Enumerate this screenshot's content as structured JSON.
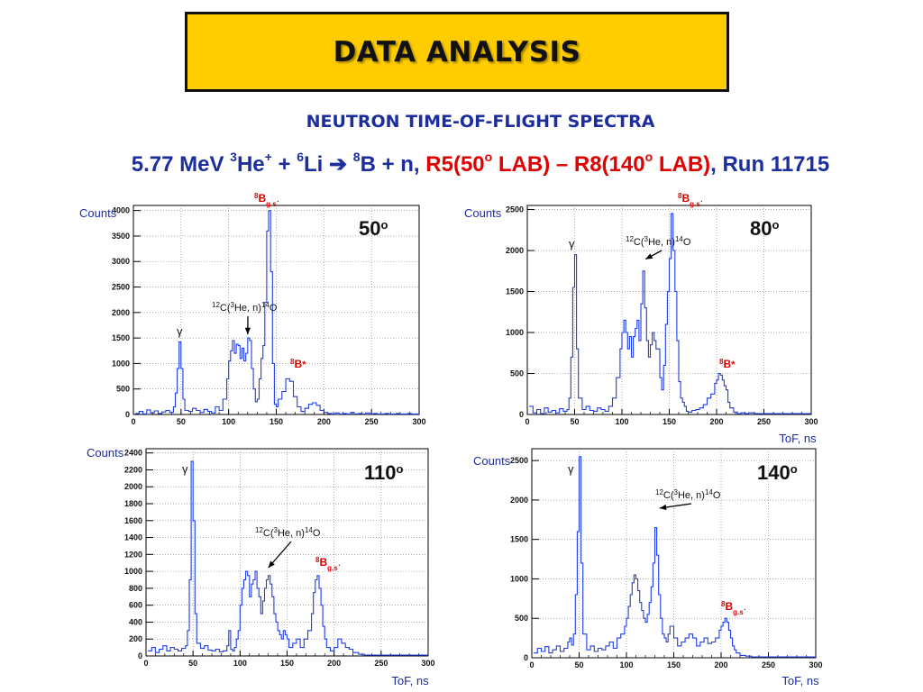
{
  "title": "DATA ANALYSIS",
  "subtitle": "NEUTRON TIME-OF-FLIGHT SPECTRA",
  "reaction": {
    "p1": "5.77 MeV ",
    "sup1": "3",
    "p2": "He",
    "sup2": "+",
    "p3": " + ",
    "sup3": "6",
    "p4": "Li ",
    "arrow": "➔",
    "p5": " ",
    "sup4": "8",
    "p6": "B + n, ",
    "red1": "R5(50",
    "sup5": "o",
    "red2": " LAB) – R8(140",
    "sup6": "o",
    "red3": " LAB)",
    "p7": ", Run 11715"
  },
  "colors": {
    "series": "#1f3de0",
    "label": "#1c2d9e",
    "red": "#e00000",
    "title_bg": "#ffcc00"
  },
  "chart_data": [
    {
      "type": "line",
      "angle_label": "50",
      "angle_unit": "o",
      "ylabel": "Counts",
      "xlabel": "",
      "xlim": [
        0,
        300
      ],
      "ylim": [
        0,
        4100
      ],
      "xticks": [
        0,
        50,
        100,
        150,
        200,
        250,
        300
      ],
      "yticks": [
        0,
        500,
        1000,
        1500,
        2000,
        2500,
        3000,
        3500,
        4000
      ],
      "annotations": [
        {
          "text": "γ",
          "x": 45,
          "y": 1700
        },
        {
          "text": "12C(3He, n)14O",
          "x": 120,
          "y": 1500,
          "arrow": true
        },
        {
          "text": "8Bg.s.",
          "x": 142,
          "y": 4200
        },
        {
          "text": "8B*",
          "x": 170,
          "y": 900
        }
      ],
      "x": [
        2,
        6,
        10,
        14,
        18,
        22,
        26,
        30,
        34,
        38,
        42,
        44,
        46,
        48,
        50,
        52,
        54,
        58,
        62,
        66,
        70,
        74,
        78,
        82,
        86,
        90,
        94,
        98,
        100,
        102,
        104,
        106,
        108,
        110,
        112,
        114,
        116,
        118,
        120,
        122,
        124,
        126,
        128,
        130,
        132,
        134,
        136,
        138,
        140,
        142,
        144,
        146,
        148,
        150,
        152,
        156,
        160,
        164,
        168,
        172,
        176,
        180,
        184,
        188,
        192,
        196,
        200,
        204,
        208,
        212,
        216,
        220,
        224,
        228,
        232,
        236,
        240,
        244,
        248,
        252,
        256,
        260,
        264,
        268,
        272,
        276,
        280,
        284,
        288,
        292,
        296,
        300
      ],
      "y": [
        20,
        60,
        10,
        90,
        30,
        70,
        20,
        50,
        80,
        40,
        150,
        420,
        900,
        1420,
        900,
        300,
        80,
        60,
        120,
        80,
        40,
        100,
        60,
        30,
        150,
        80,
        300,
        700,
        1050,
        1250,
        1450,
        1200,
        1380,
        1350,
        1100,
        1300,
        1050,
        1200,
        1500,
        1450,
        900,
        500,
        250,
        300,
        700,
        1100,
        1350,
        2200,
        3600,
        4000,
        2800,
        1000,
        200,
        150,
        300,
        450,
        700,
        650,
        350,
        150,
        60,
        120,
        200,
        230,
        180,
        80,
        40,
        20,
        10,
        30,
        10,
        20,
        10,
        40,
        10,
        20,
        10,
        30,
        10,
        20,
        10,
        10,
        20,
        10,
        10,
        20,
        10,
        10,
        20,
        10,
        10,
        10
      ]
    },
    {
      "type": "line",
      "angle_label": "80",
      "angle_unit": "o",
      "ylabel": "Counts",
      "xlabel": "ToF, ns",
      "xlim": [
        0,
        300
      ],
      "ylim": [
        0,
        2550
      ],
      "xticks": [
        0,
        50,
        100,
        150,
        200,
        250,
        300
      ],
      "yticks": [
        0,
        500,
        1000,
        1500,
        2000,
        2500
      ],
      "annotations": [
        {
          "text": "γ",
          "x": 45,
          "y": 2100
        },
        {
          "text": "12C(3He, n)14O",
          "x": 125,
          "y": 1850,
          "arrow": true
        },
        {
          "text": "8Bg.s.",
          "x": 163,
          "y": 2650
        },
        {
          "text": "8B*",
          "x": 205,
          "y": 580
        }
      ],
      "x": [
        2,
        6,
        10,
        14,
        18,
        22,
        26,
        30,
        34,
        38,
        42,
        44,
        46,
        48,
        50,
        52,
        54,
        58,
        62,
        66,
        70,
        74,
        78,
        82,
        86,
        90,
        94,
        98,
        100,
        102,
        104,
        106,
        108,
        110,
        112,
        114,
        116,
        118,
        120,
        122,
        124,
        126,
        128,
        130,
        132,
        134,
        136,
        140,
        142,
        144,
        146,
        148,
        150,
        152,
        154,
        156,
        158,
        160,
        162,
        164,
        166,
        168,
        170,
        174,
        178,
        182,
        186,
        190,
        194,
        198,
        200,
        202,
        204,
        206,
        208,
        210,
        212,
        214,
        218,
        222,
        226,
        230,
        234,
        240,
        250,
        260,
        270,
        280,
        290,
        300
      ],
      "y": [
        100,
        20,
        60,
        10,
        80,
        30,
        50,
        20,
        70,
        40,
        60,
        200,
        700,
        1550,
        1950,
        800,
        200,
        60,
        100,
        50,
        40,
        80,
        60,
        40,
        100,
        200,
        450,
        800,
        1000,
        1150,
        1000,
        800,
        950,
        700,
        950,
        1050,
        1150,
        900,
        1350,
        1750,
        1300,
        900,
        700,
        850,
        1000,
        900,
        800,
        450,
        300,
        600,
        1100,
        1500,
        1900,
        2450,
        2000,
        1500,
        900,
        400,
        200,
        150,
        100,
        40,
        30,
        50,
        60,
        80,
        120,
        200,
        250,
        380,
        420,
        500,
        480,
        420,
        350,
        300,
        150,
        80,
        30,
        10,
        20,
        10,
        20,
        10,
        10,
        10,
        10,
        10,
        10,
        10
      ]
    },
    {
      "type": "line",
      "angle_label": "110",
      "angle_unit": "o",
      "ylabel": "Counts",
      "xlabel": "ToF, ns",
      "xlim": [
        0,
        300
      ],
      "ylim": [
        0,
        2450
      ],
      "xticks": [
        0,
        50,
        100,
        150,
        200,
        250,
        300
      ],
      "yticks": [
        0,
        200,
        400,
        600,
        800,
        1000,
        1200,
        1400,
        1600,
        1800,
        2000,
        2200,
        2400
      ],
      "annotations": [
        {
          "text": "γ",
          "x": 40,
          "y": 2300
        },
        {
          "text": "12C(3He, n)14O",
          "x": 130,
          "y": 1000,
          "arrow": true
        },
        {
          "text": "8Bg.s.",
          "x": 185,
          "y": 1080
        }
      ],
      "x": [
        2,
        6,
        10,
        14,
        18,
        22,
        26,
        30,
        34,
        38,
        42,
        44,
        46,
        48,
        50,
        52,
        54,
        58,
        62,
        66,
        70,
        74,
        78,
        82,
        86,
        88,
        90,
        92,
        94,
        96,
        98,
        100,
        102,
        104,
        106,
        108,
        110,
        112,
        114,
        116,
        118,
        120,
        122,
        124,
        126,
        128,
        130,
        132,
        134,
        136,
        138,
        140,
        142,
        144,
        146,
        148,
        150,
        152,
        156,
        160,
        164,
        168,
        172,
        176,
        178,
        180,
        182,
        184,
        186,
        188,
        190,
        192,
        196,
        200,
        204,
        208,
        212,
        216,
        220,
        226,
        232,
        240,
        250,
        260,
        270,
        280,
        290,
        300
      ],
      "y": [
        60,
        100,
        40,
        80,
        120,
        60,
        100,
        80,
        60,
        90,
        120,
        300,
        900,
        2300,
        1600,
        500,
        150,
        90,
        120,
        70,
        60,
        80,
        50,
        60,
        120,
        300,
        80,
        60,
        100,
        200,
        300,
        600,
        800,
        900,
        1000,
        950,
        700,
        850,
        900,
        1000,
        800,
        700,
        500,
        650,
        800,
        900,
        950,
        850,
        700,
        500,
        400,
        300,
        250,
        200,
        300,
        250,
        200,
        100,
        150,
        200,
        100,
        200,
        300,
        500,
        750,
        900,
        950,
        800,
        600,
        350,
        200,
        100,
        60,
        100,
        200,
        150,
        100,
        80,
        40,
        20,
        10,
        10,
        10,
        10,
        10,
        10,
        10,
        10
      ]
    },
    {
      "type": "line",
      "angle_label": "140",
      "angle_unit": "o",
      "ylabel": "Counts",
      "xlabel": "ToF, ns",
      "xlim": [
        0,
        300
      ],
      "ylim": [
        0,
        2650
      ],
      "xticks": [
        0,
        50,
        100,
        150,
        200,
        250,
        300
      ],
      "yticks": [
        0,
        500,
        1000,
        1500,
        2000,
        2500
      ],
      "annotations": [
        {
          "text": "γ",
          "x": 40,
          "y": 2450
        },
        {
          "text": "12C(3He, n)14O",
          "x": 135,
          "y": 1850,
          "arrow": true
        },
        {
          "text": "8Bg.s.",
          "x": 200,
          "y": 650
        }
      ],
      "x": [
        2,
        6,
        10,
        14,
        18,
        22,
        26,
        30,
        34,
        38,
        40,
        42,
        44,
        46,
        48,
        50,
        52,
        54,
        58,
        62,
        66,
        70,
        74,
        78,
        82,
        86,
        90,
        94,
        98,
        100,
        102,
        104,
        106,
        108,
        110,
        112,
        114,
        116,
        118,
        120,
        122,
        124,
        126,
        128,
        130,
        132,
        134,
        136,
        138,
        140,
        142,
        144,
        146,
        150,
        154,
        158,
        162,
        166,
        170,
        174,
        178,
        182,
        186,
        190,
        194,
        198,
        200,
        202,
        204,
        206,
        208,
        210,
        212,
        214,
        216,
        220,
        226,
        232,
        240,
        250,
        260,
        270,
        280,
        290,
        300
      ],
      "y": [
        60,
        120,
        80,
        140,
        60,
        100,
        150,
        80,
        120,
        200,
        250,
        160,
        300,
        800,
        1600,
        2550,
        1200,
        300,
        100,
        150,
        80,
        120,
        100,
        150,
        200,
        120,
        250,
        300,
        400,
        500,
        650,
        800,
        950,
        1050,
        1000,
        850,
        700,
        600,
        500,
        450,
        550,
        700,
        900,
        1200,
        1650,
        1300,
        800,
        500,
        300,
        250,
        200,
        300,
        400,
        250,
        150,
        200,
        250,
        300,
        250,
        150,
        200,
        250,
        180,
        200,
        250,
        350,
        400,
        450,
        500,
        450,
        350,
        250,
        150,
        100,
        60,
        30,
        20,
        10,
        10,
        10,
        10,
        10,
        10,
        10,
        10
      ]
    }
  ]
}
